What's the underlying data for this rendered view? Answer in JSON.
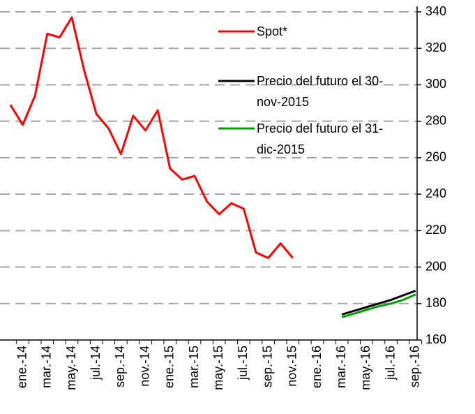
{
  "chart_data": {
    "type": "line",
    "categories": [
      null,
      "ene.-14",
      null,
      "mar.-14",
      null,
      "may.-14",
      null,
      "jul.-14",
      null,
      "sep.-14",
      null,
      "nov.-14",
      null,
      "ene.-15",
      null,
      "mar.-15",
      null,
      "may.-15",
      null,
      "jul.-15",
      null,
      "sep.-15",
      null,
      "nov.-15",
      null,
      "ene.-16",
      null,
      "mar.-16",
      null,
      "may.-16",
      null,
      "jul.-16",
      null,
      "sep.-16"
    ],
    "series": [
      {
        "name": "Spot*",
        "color": "#ff0000",
        "values": [
          289,
          278,
          294,
          328,
          326,
          337,
          308,
          284,
          276,
          262,
          283,
          275,
          286,
          254,
          248,
          250,
          236,
          229,
          235,
          232,
          208,
          205,
          213,
          205,
          null,
          null,
          null,
          null,
          null,
          null,
          null,
          null,
          null,
          null
        ]
      },
      {
        "name": "Precio del futuro el 30-nov-2015",
        "color": "#000000",
        "values": [
          null,
          null,
          null,
          null,
          null,
          null,
          null,
          null,
          null,
          null,
          null,
          null,
          null,
          null,
          null,
          null,
          null,
          null,
          null,
          null,
          null,
          null,
          null,
          null,
          null,
          null,
          null,
          174,
          176,
          178,
          180,
          182,
          184.5,
          187
        ]
      },
      {
        "name": "Precio del futuro el 31-dic-2015",
        "color": "#00a000",
        "values": [
          null,
          null,
          null,
          null,
          null,
          null,
          null,
          null,
          null,
          null,
          null,
          null,
          null,
          null,
          null,
          null,
          null,
          null,
          null,
          null,
          null,
          null,
          null,
          null,
          null,
          null,
          null,
          172.5,
          174.5,
          176.5,
          178.5,
          180,
          182,
          185
        ]
      }
    ],
    "ylim": [
      160,
      340
    ],
    "yticks": [
      160,
      180,
      200,
      220,
      240,
      260,
      280,
      300,
      320,
      340
    ],
    "grid": true
  }
}
